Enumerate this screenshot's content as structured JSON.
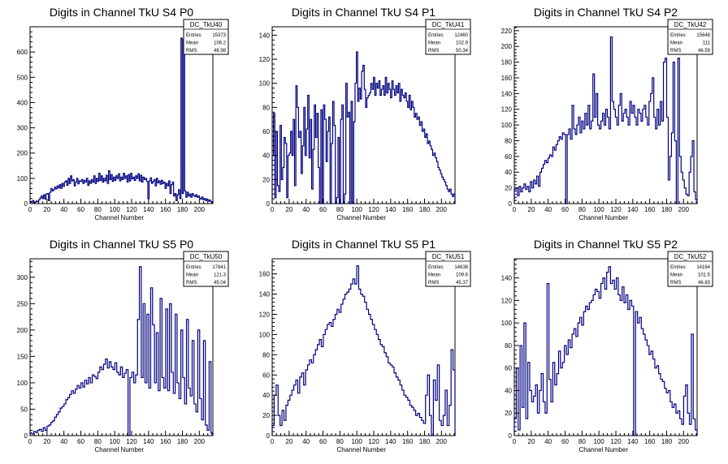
{
  "chart_data": [
    {
      "type": "bar",
      "title": "Digits in Channel TkU S4 P0",
      "xlabel": "Channel Number",
      "ylabel": "",
      "xlim": [
        0,
        216
      ],
      "ylim": [
        0,
        700
      ],
      "xticks": [
        0,
        20,
        40,
        60,
        80,
        100,
        120,
        140,
        160,
        180,
        200
      ],
      "yticks": [
        0,
        100,
        200,
        300,
        400,
        500,
        600
      ],
      "stats": {
        "name": "DC_TkU40",
        "entries": "15373",
        "mean": "106.2",
        "rms": "48.98"
      },
      "series": [
        {
          "values": [
            8,
            5,
            12,
            3,
            6,
            10,
            8,
            15,
            22,
            30,
            20,
            35,
            18,
            38,
            40,
            12,
            45,
            60,
            50,
            55,
            65,
            58,
            70,
            62,
            75,
            60,
            80,
            68,
            85,
            90,
            72,
            100,
            80,
            110,
            90,
            95,
            70,
            85,
            100,
            78,
            90,
            88,
            95,
            80,
            92,
            85,
            100,
            72,
            90,
            80,
            95,
            85,
            110,
            80,
            100,
            88,
            120,
            92,
            110,
            85,
            100,
            90,
            112,
            80,
            130,
            95,
            115,
            88,
            105,
            92,
            110,
            100,
            118,
            90,
            105,
            95,
            120,
            100,
            110,
            85,
            115,
            90,
            120,
            98,
            105,
            92,
            110,
            100,
            118,
            90,
            112,
            85,
            105,
            95,
            100,
            88,
            20,
            90,
            102,
            80,
            88,
            95,
            70,
            100,
            82,
            90,
            76,
            92,
            80,
            85,
            60,
            80,
            70,
            90,
            40,
            75,
            85,
            30,
            40,
            12,
            35,
            55,
            20,
            655,
            40,
            650,
            50,
            25,
            45,
            30,
            38,
            25,
            40,
            32,
            28,
            35,
            25,
            30,
            22,
            18,
            26,
            15,
            20,
            12,
            18,
            10,
            14,
            8,
            5
          ]
        }
      ]
    },
    {
      "type": "bar",
      "title": "Digits in Channel TkU S4 P1",
      "xlabel": "Channel Number",
      "ylabel": "",
      "xlim": [
        0,
        216
      ],
      "ylim": [
        0,
        147
      ],
      "xticks": [
        0,
        20,
        40,
        60,
        80,
        100,
        120,
        140,
        160,
        180,
        200
      ],
      "yticks": [
        0,
        20,
        40,
        60,
        80,
        100,
        120,
        140
      ],
      "stats": {
        "name": "DC_TkU41",
        "entries": "12460",
        "mean": "102.9",
        "rms": "50.34"
      },
      "series": [
        {
          "values": [
            40,
            75,
            5,
            60,
            15,
            10,
            65,
            20,
            30,
            55,
            50,
            5,
            40,
            42,
            60,
            40,
            70,
            15,
            98,
            80,
            55,
            60,
            25,
            48,
            80,
            40,
            62,
            90,
            38,
            70,
            12,
            45,
            82,
            55,
            75,
            30,
            0,
            78,
            0,
            82,
            70,
            35,
            60,
            72,
            0,
            50,
            85,
            65,
            0,
            5,
            55,
            0,
            70,
            82,
            0,
            8,
            100,
            72,
            76,
            0,
            85,
            0,
            68,
            100,
            126,
            85,
            96,
            87,
            110,
            115,
            95,
            80,
            88,
            90,
            92,
            100,
            95,
            105,
            90,
            100,
            96,
            102,
            90,
            95,
            98,
            90,
            105,
            92,
            100,
            95,
            88,
            102,
            95,
            90,
            98,
            92,
            100,
            85,
            95,
            90,
            88,
            92,
            85,
            80,
            90,
            78,
            85,
            80,
            72,
            75,
            70,
            72,
            65,
            68,
            60,
            62,
            55,
            58,
            50,
            52,
            48,
            45,
            40,
            42,
            38,
            35,
            30,
            28,
            25,
            22,
            20,
            18,
            15,
            12,
            10,
            12,
            8,
            6,
            8
          ]
        }
      ]
    },
    {
      "type": "bar",
      "title": "Digits in Channel TkU S4 P2",
      "xlabel": "Channel Number",
      "ylabel": "",
      "xlim": [
        0,
        216
      ],
      "ylim": [
        0,
        225
      ],
      "xticks": [
        0,
        20,
        40,
        60,
        80,
        100,
        120,
        140,
        160,
        180,
        200
      ],
      "yticks": [
        0,
        20,
        40,
        60,
        80,
        100,
        120,
        140,
        160,
        180,
        200,
        220
      ],
      "stats": {
        "name": "DC_TkU42",
        "entries": "15648",
        "mean": "111",
        "rms": "46.59"
      },
      "series": [
        {
          "values": [
            18,
            20,
            10,
            22,
            15,
            20,
            25,
            18,
            22,
            15,
            28,
            20,
            30,
            25,
            35,
            22,
            40,
            45,
            50,
            55,
            52,
            58,
            62,
            60,
            72,
            68,
            75,
            80,
            85,
            82,
            90,
            88,
            0,
            88,
            95,
            82,
            125,
            95,
            88,
            100,
            110,
            90,
            105,
            95,
            115,
            100,
            125,
            95,
            105,
            165,
            110,
            140,
            100,
            95,
            105,
            115,
            100,
            120,
            110,
            95,
            212,
            130,
            120,
            110,
            100,
            125,
            140,
            105,
            115,
            120,
            110,
            100,
            130,
            115,
            125,
            110,
            100,
            120,
            115,
            105,
            120,
            125,
            110,
            100,
            130,
            140,
            160,
            110,
            95,
            120,
            100,
            130,
            105,
            180,
            185,
            110,
            30,
            60,
            90,
            180,
            80,
            0,
            185,
            60,
            40,
            30,
            20,
            12,
            10,
            40,
            60,
            80,
            15,
            5
          ]
        }
      ]
    },
    {
      "type": "bar",
      "title": "Digits in Channel TkU S5 P0",
      "xlabel": "Channel Number",
      "ylabel": "",
      "xlim": [
        0,
        216
      ],
      "ylim": [
        0,
        335
      ],
      "xticks": [
        0,
        20,
        40,
        60,
        80,
        100,
        120,
        140,
        160,
        180,
        200
      ],
      "yticks": [
        0,
        50,
        100,
        150,
        200,
        250,
        300
      ],
      "stats": {
        "name": "DC_TkU50",
        "entries": "17841",
        "mean": "121.3",
        "rms": "45.04"
      },
      "series": [
        {
          "values": [
            5,
            3,
            8,
            6,
            10,
            12,
            8,
            15,
            10,
            18,
            20,
            25,
            28,
            35,
            40,
            45,
            52,
            55,
            60,
            68,
            72,
            78,
            85,
            80,
            88,
            95,
            90,
            100,
            92,
            105,
            98,
            110,
            100,
            115,
            112,
            108,
            120,
            130,
            125,
            135,
            145,
            128,
            140,
            130,
            125,
            138,
            120,
            115,
            130,
            110,
            118,
            125,
            0,
            110,
            120,
            100,
            115,
            220,
            320,
            110,
            250,
            100,
            230,
            90,
            280,
            210,
            100,
            195,
            85,
            260,
            110,
            90,
            240,
            85,
            250,
            120,
            80,
            230,
            100,
            70,
            200,
            110,
            60,
            220,
            90,
            75,
            180,
            60,
            45,
            200,
            70,
            30,
            180,
            20,
            10,
            140,
            5
          ]
        }
      ]
    },
    {
      "type": "bar",
      "title": "Digits in Channel TkU S5 P1",
      "xlabel": "Channel Number",
      "ylabel": "",
      "xlim": [
        0,
        216
      ],
      "ylim": [
        0,
        175
      ],
      "xticks": [
        0,
        20,
        40,
        60,
        80,
        100,
        120,
        140,
        160,
        180,
        200
      ],
      "yticks": [
        0,
        20,
        40,
        60,
        80,
        100,
        120,
        140,
        160
      ],
      "stats": {
        "name": "DC_TkU51",
        "entries": "14638",
        "mean": "109.6",
        "rms": "45.37"
      },
      "series": [
        {
          "values": [
            10,
            40,
            50,
            20,
            10,
            25,
            15,
            30,
            35,
            40,
            45,
            50,
            55,
            42,
            58,
            62,
            50,
            65,
            70,
            75,
            72,
            80,
            85,
            90,
            95,
            88,
            100,
            105,
            110,
            112,
            108,
            115,
            120,
            125,
            122,
            130,
            135,
            140,
            142,
            145,
            150,
            155,
            150,
            168,
            145,
            140,
            138,
            132,
            125,
            120,
            115,
            110,
            105,
            100,
            95,
            90,
            88,
            82,
            78,
            72,
            70,
            68,
            62,
            58,
            55,
            50,
            45,
            40,
            38,
            35,
            30,
            28,
            25,
            20,
            22,
            18,
            15,
            12,
            40,
            60,
            20,
            0,
            55,
            35,
            70,
            15,
            10,
            20,
            45,
            10,
            30,
            85,
            65
          ]
        }
      ]
    },
    {
      "type": "bar",
      "title": "Digits in Channel TkU S5 P2",
      "xlabel": "Channel Number",
      "ylabel": "",
      "xlim": [
        0,
        216
      ],
      "ylim": [
        0,
        157
      ],
      "xticks": [
        0,
        20,
        40,
        60,
        80,
        100,
        120,
        140,
        160,
        180,
        200
      ],
      "yticks": [
        0,
        20,
        40,
        60,
        80,
        100,
        120,
        140
      ],
      "stats": {
        "name": "DC_TkU52",
        "entries": "14164",
        "mean": "101.5",
        "rms": "46.83"
      },
      "series": [
        {
          "values": [
            15,
            60,
            5,
            80,
            25,
            100,
            15,
            65,
            40,
            30,
            35,
            45,
            20,
            40,
            55,
            30,
            20,
            135,
            50,
            30,
            65,
            45,
            55,
            75,
            60,
            65,
            80,
            72,
            85,
            78,
            90,
            95,
            88,
            100,
            105,
            98,
            110,
            115,
            112,
            118,
            120,
            125,
            130,
            128,
            122,
            135,
            140,
            130,
            145,
            150,
            135,
            138,
            130,
            140,
            125,
            120,
            132,
            118,
            125,
            112,
            120,
            115,
            0,
            110,
            100,
            105,
            95,
            90,
            85,
            80,
            72,
            75,
            68,
            60,
            62,
            55,
            50,
            48,
            42,
            38,
            40,
            30,
            25,
            28,
            20,
            22,
            15,
            10,
            35,
            45,
            20,
            10,
            90,
            15,
            5
          ]
        }
      ]
    }
  ]
}
